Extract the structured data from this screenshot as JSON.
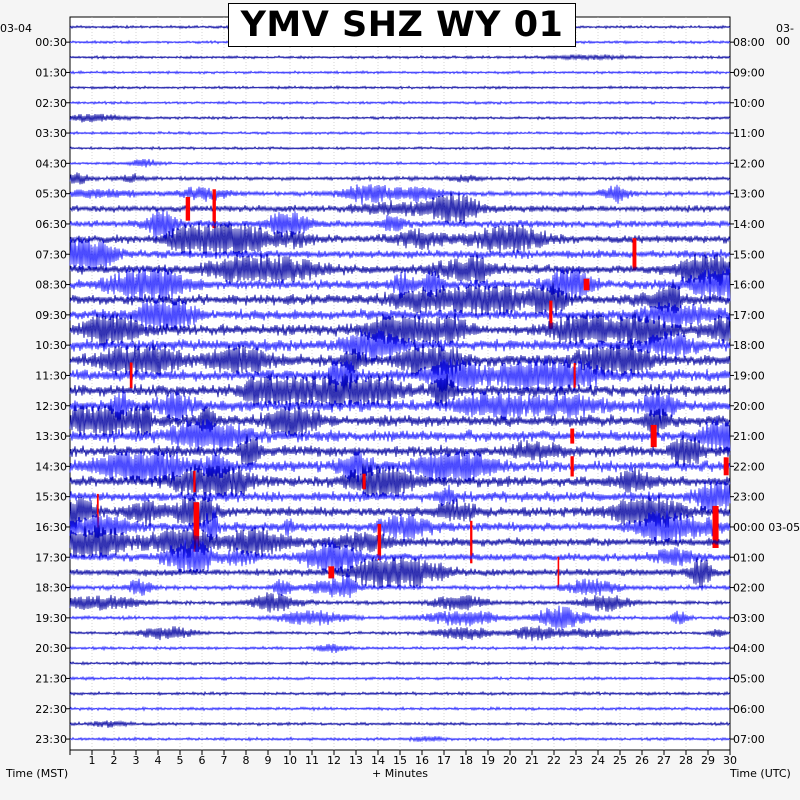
{
  "header": {
    "title": "YMV SHZ WY 01"
  },
  "dates": {
    "left": "03-04",
    "right_top": "03-00",
    "right_next": "03-05"
  },
  "axes": {
    "left_label": "Time (MST)",
    "x_label": "+ Minutes",
    "right_label": "Time (UTC)"
  },
  "chart_data": {
    "type": "line",
    "title": "YMV SHZ WY 01",
    "xlabel": "+ Minutes",
    "ylabel_left": "Time (MST)",
    "ylabel_right": "Time (UTC)",
    "xlim": [
      0,
      30
    ],
    "x_ticks": [
      "1",
      "2",
      "3",
      "4",
      "5",
      "6",
      "7",
      "8",
      "9",
      "10",
      "11",
      "12",
      "13",
      "14",
      "15",
      "16",
      "17",
      "18",
      "19",
      "20",
      "21",
      "22",
      "23",
      "24",
      "25",
      "26",
      "27",
      "28",
      "29",
      "30"
    ],
    "left_ticks": [
      "00:30",
      "01:30",
      "02:30",
      "03:30",
      "04:30",
      "05:30",
      "06:30",
      "07:30",
      "08:30",
      "09:30",
      "10:30",
      "11:30",
      "12:30",
      "13:30",
      "14:30",
      "15:30",
      "16:30",
      "17:30",
      "18:30",
      "19:30",
      "20:30",
      "21:30",
      "22:30",
      "23:30"
    ],
    "right_ticks": [
      "08:00",
      "09:00",
      "10:00",
      "11:00",
      "12:00",
      "13:00",
      "14:00",
      "15:00",
      "16:00",
      "17:00",
      "18:00",
      "19:00",
      "20:00",
      "21:00",
      "22:00",
      "23:00",
      "00:00",
      "01:00",
      "02:00",
      "03:00",
      "04:00",
      "05:00",
      "06:00",
      "07:00"
    ],
    "trace_count": 48,
    "trace_interval_minutes": 30,
    "trace_colors": [
      "#0000a0",
      "#2020ff"
    ],
    "clipped_color": "#ff0000",
    "grid": true,
    "activity_window": {
      "start_minute": 0,
      "end_minute": 30,
      "most_active_traces": [
        13,
        36
      ]
    }
  }
}
